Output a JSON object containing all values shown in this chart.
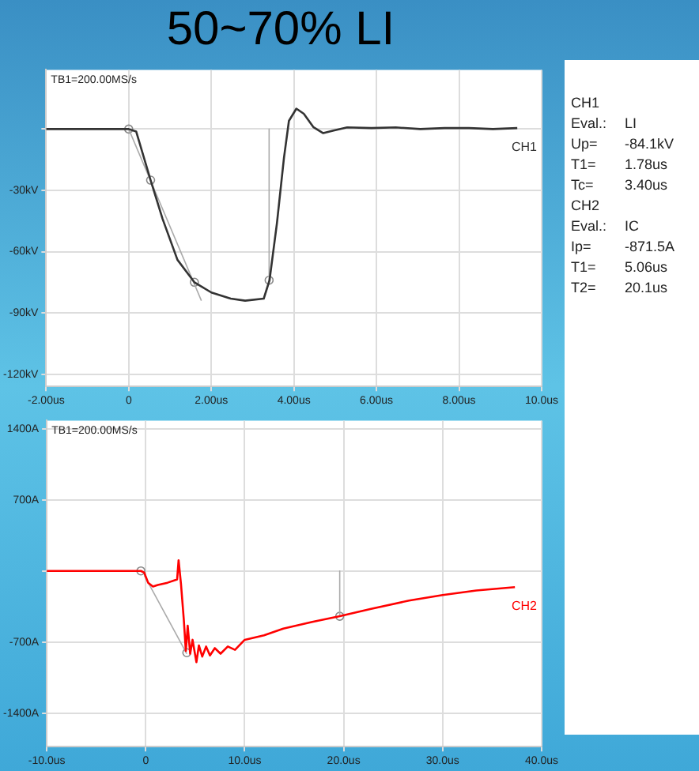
{
  "chart_data": [
    {
      "type": "line",
      "title": "50~70% LI",
      "annotations": [
        "TB1=200.00MS/s"
      ],
      "grid": true,
      "legend": false,
      "xlim": [
        -2,
        10
      ],
      "xticks": [
        {
          "value": -2,
          "label": "-2.00us"
        },
        0,
        {
          "value": 2,
          "label": "2.00us"
        },
        {
          "value": 4,
          "label": "4.00us"
        },
        {
          "value": 6,
          "label": "6.00us"
        },
        {
          "value": 8,
          "label": "8.00us"
        },
        {
          "value": 10,
          "label": "10.0us"
        }
      ],
      "ylim": [
        -126,
        29
      ],
      "yticks": [
        {
          "value": -120,
          "label": "-120kV"
        },
        {
          "value": -90,
          "label": "-90kV"
        },
        {
          "value": -60,
          "label": "-60kV"
        },
        {
          "value": -30,
          "label": "-30kV"
        },
        {
          "value": 0,
          "label": null
        }
      ],
      "series": [
        {
          "name": "CH1",
          "color": "#333333",
          "x": [
            -2,
            0,
            0.18,
            0.53,
            0.82,
            1.18,
            1.59,
            2.0,
            2.47,
            2.82,
            3.27,
            3.41,
            3.59,
            3.76,
            3.88,
            4.06,
            4.24,
            4.47,
            4.71,
            4.94,
            5.29,
            5.88,
            6.47,
            7.06,
            7.65,
            8.24,
            8.82,
            9.41
          ],
          "values": [
            0,
            0,
            -1.2,
            -25,
            -44,
            -64,
            -75,
            -80,
            -83,
            -84,
            -83,
            -74,
            -46,
            -14,
            4,
            10,
            7.5,
            1,
            -2,
            -0.8,
            0.8,
            0.5,
            0.8,
            0,
            0.5,
            0.5,
            0,
            0.5
          ]
        },
        {
          "type": "line",
          "color": "#aaaaaa",
          "x": [
            0,
            1.76
          ],
          "values": [
            0,
            -84
          ]
        },
        {
          "type": "line",
          "color": "#aaaaaa",
          "x": [
            3.4,
            3.4
          ],
          "values": [
            0,
            -74
          ]
        },
        {
          "type": "scatter",
          "marker": "circle",
          "color": "#888888",
          "x": [
            0,
            0.53,
            1.59,
            3.4
          ],
          "values": [
            0,
            -25,
            -75,
            -74
          ]
        }
      ]
    },
    {
      "type": "line",
      "annotations": [
        "TB1=200.00MS/s"
      ],
      "grid": true,
      "legend": false,
      "xlim": [
        -10,
        40
      ],
      "xticks": [
        {
          "value": -10,
          "label": "-10.0us"
        },
        0,
        {
          "value": 10,
          "label": "10.0us"
        },
        {
          "value": 20,
          "label": "20.0us"
        },
        {
          "value": 30,
          "label": "30.0us"
        },
        {
          "value": 40,
          "label": "40.0us"
        }
      ],
      "ylim": [
        -1730,
        1480
      ],
      "yticks": [
        {
          "value": -1400,
          "label": "-1400A"
        },
        {
          "value": -700,
          "label": "-700A"
        },
        {
          "value": 0,
          "label": null
        },
        {
          "value": 700,
          "label": "700A"
        },
        {
          "value": 1400,
          "label": "1400A"
        }
      ],
      "series": [
        {
          "name": "CH2",
          "color": "#ff0000",
          "x": [
            -10,
            -0.49,
            -0.15,
            0.24,
            0.73,
            1.22,
            2.2,
            3.17,
            3.32,
            3.56,
            3.85,
            4.05,
            4.24,
            4.49,
            4.73,
            5.12,
            5.37,
            5.71,
            6.1,
            6.49,
            6.98,
            7.56,
            8.29,
            9.02,
            10,
            11.95,
            13.9,
            16.83,
            19.61,
            22.68,
            26.6,
            30,
            33.4,
            37.3
          ],
          "values": [
            0,
            0,
            -17,
            -116,
            -154,
            -138,
            -116,
            -83,
            105,
            -127,
            -485,
            -788,
            -540,
            -815,
            -678,
            -898,
            -733,
            -843,
            -744,
            -832,
            -760,
            -815,
            -744,
            -777,
            -678,
            -634,
            -568,
            -501,
            -446,
            -375,
            -292,
            -237,
            -193,
            -160
          ]
        },
        {
          "type": "line",
          "color": "#aaaaaa",
          "x": [
            -0.15,
            4.15
          ],
          "values": [
            -44,
            -815
          ]
        },
        {
          "type": "line",
          "color": "#aaaaaa",
          "x": [
            19.6,
            19.6
          ],
          "values": [
            0,
            -446
          ]
        },
        {
          "type": "scatter",
          "marker": "circle",
          "color": "#888888",
          "x": [
            -0.49,
            4.15,
            19.6
          ],
          "values": [
            0,
            -805,
            -446
          ]
        }
      ]
    },
    {
      "type": "other",
      "annotations": [
        "CH1",
        "Eval.:",
        "LI",
        "Up=",
        "-84.1kV",
        "T1=",
        "1.78us",
        "Tc=",
        "3.40us",
        "CH2",
        "Eval.:",
        "IC",
        "Ip=",
        "-871.5A",
        "T1=",
        "5.06us",
        "T2=",
        "20.1us"
      ]
    }
  ]
}
